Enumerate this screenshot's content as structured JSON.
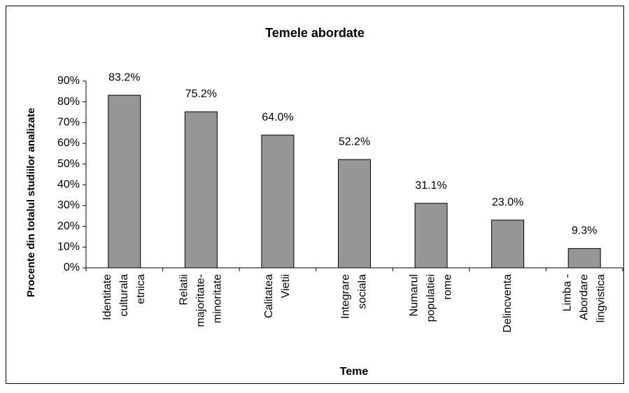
{
  "chart_data": {
    "type": "bar",
    "title": "Temele abordate",
    "x_label": "Teme",
    "y_label": "Procente din totalul studiilor analizate",
    "categories": [
      [
        "Identitate",
        "culturala",
        "etnica"
      ],
      [
        "Relatii",
        "majoritate-",
        "minoritate"
      ],
      [
        "Calitatea",
        "Vietii"
      ],
      [
        "Integrare",
        "sociala"
      ],
      [
        "Numarul",
        "populatiei",
        "rome"
      ],
      [
        "Delincventa"
      ],
      [
        "Limba -",
        "Abordare",
        "lingvistica"
      ]
    ],
    "values": [
      83.2,
      75.2,
      64.0,
      52.2,
      31.1,
      23.0,
      9.3
    ],
    "value_labels": [
      "83.2%",
      "75.2%",
      "64.0%",
      "52.2%",
      "31.1%",
      "23.0%",
      "9.3%"
    ],
    "color": "#969696",
    "ylim": [
      0,
      90
    ],
    "yticks": [
      {
        "value": 0,
        "label": "0%"
      },
      {
        "value": 10,
        "label": "10%"
      },
      {
        "value": 20,
        "label": "20%"
      },
      {
        "value": 30,
        "label": "30%"
      },
      {
        "value": 40,
        "label": "40%"
      },
      {
        "value": 50,
        "label": "50%"
      },
      {
        "value": 60,
        "label": "60%"
      },
      {
        "value": 70,
        "label": "70%"
      },
      {
        "value": 80,
        "label": "80%"
      },
      {
        "value": 90,
        "label": "90%"
      }
    ],
    "grid": false
  }
}
